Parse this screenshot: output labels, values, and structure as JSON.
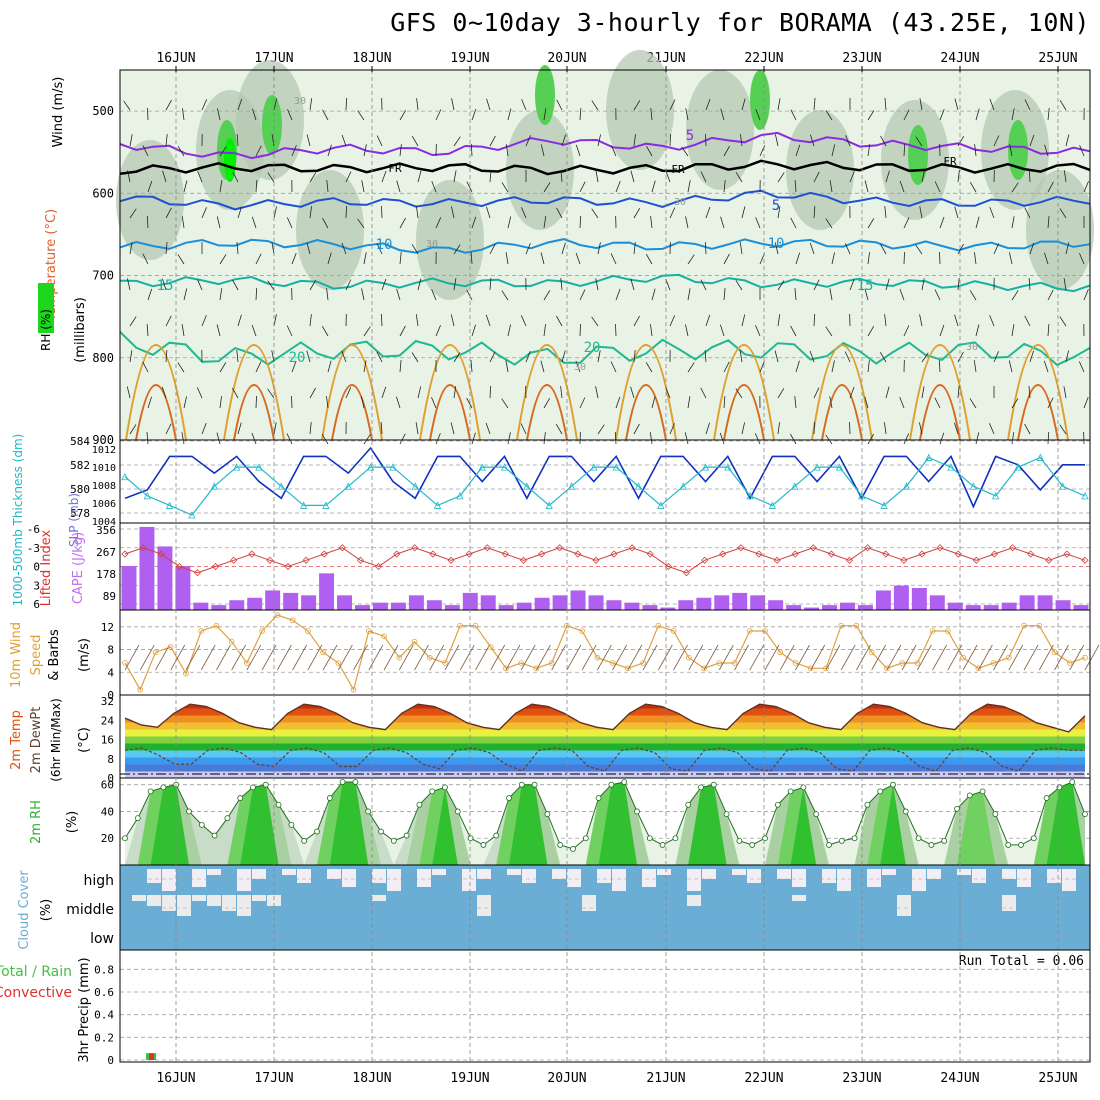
{
  "title": "GFS 0~10day 3-hourly for BORAMA (43.25E, 10N)",
  "date_labels": [
    "16JUN",
    "17JUN",
    "18JUN",
    "19JUN",
    "20JUN",
    "21JUN",
    "22JUN",
    "23JUN",
    "24JUN",
    "25JUN"
  ],
  "colors": {
    "frame": "#000000",
    "grid": "#a0a0a0",
    "rh_fill": "#c8d8c8",
    "temp_5": "#8a2be2",
    "temp_10": "#1a8fd8",
    "temp_15": "#17b0a0",
    "temp_20": "#20b890",
    "fr": "#000000",
    "slp": "#1030c0",
    "thk": "#20b8c8",
    "li": "#d04040",
    "cape": "#b060f0",
    "wind": "#e0a040",
    "temp2m": "#e05020",
    "rh2m": "#30b030",
    "cloud": "#6aaed6",
    "precip_total": "#40c040",
    "precip_conv": "#e03030"
  },
  "chart_data": [
    {
      "type": "heatmap",
      "ylabel_wind": "Wind (m/s)",
      "ylabel_temp": "Temperature (°C)",
      "ylabel_rh": "RH (%)",
      "ylabel_p": "(millibars)",
      "yticks": [
        "500",
        "600",
        "700",
        "800",
        "900"
      ],
      "ylim": [
        900,
        450
      ],
      "contours": [
        {
          "level": "5",
          "pressure": [
            540,
            555,
            545,
            550,
            535,
            545,
            530,
            540,
            545,
            550
          ]
        },
        {
          "level": "FR",
          "pressure": [
            572,
            568,
            570,
            568,
            572,
            570,
            565,
            568,
            570,
            568
          ]
        },
        {
          "level": "5",
          "pressure": [
            605,
            615,
            610,
            612,
            608,
            612,
            600,
            610,
            612,
            608
          ]
        },
        {
          "level": "10",
          "pressure": [
            665,
            660,
            662,
            670,
            660,
            665,
            660,
            662,
            665,
            660
          ]
        },
        {
          "level": "15",
          "pressure": [
            710,
            705,
            712,
            708,
            710,
            702,
            710,
            708,
            712,
            715
          ]
        },
        {
          "level": "20",
          "pressure": [
            780,
            800,
            790,
            790,
            800,
            790,
            790,
            795,
            790,
            800
          ]
        }
      ],
      "inline_labels": [
        "5",
        "FR",
        "FR",
        "FR",
        "5",
        "10",
        "10",
        "15",
        "15",
        "20",
        "20",
        "30",
        "30",
        "30",
        "30",
        "30"
      ]
    },
    {
      "type": "line",
      "ylabel_left": "1000-500mb Thickness (dm)",
      "ylabel_right": "SLP (mb)",
      "yticks_left": [
        "578",
        "580",
        "582",
        "584"
      ],
      "yticks_right": [
        "1004",
        "1006",
        "1008",
        "1010",
        "1012"
      ],
      "series": [
        {
          "name": "SLP (mb)",
          "values": [
            1006,
            1007,
            1011,
            1011,
            1009,
            1011,
            1008,
            1006,
            1011,
            1011,
            1009,
            1012,
            1008,
            1006,
            1011,
            1011,
            1008,
            1011,
            1006,
            1011,
            1011,
            1008,
            1011,
            1006,
            1011,
            1011,
            1008,
            1011,
            1006,
            1011,
            1011,
            1008,
            1011,
            1006,
            1011,
            1011,
            1008,
            1011,
            1005,
            1011,
            1010,
            1007,
            1010,
            1010
          ]
        },
        {
          "name": "Thickness (dm)",
          "values": [
            581,
            579,
            578,
            577,
            580,
            582,
            582,
            580,
            578,
            578,
            580,
            582,
            582,
            580,
            578,
            579,
            582,
            582,
            580,
            578,
            580,
            582,
            582,
            580,
            578,
            580,
            582,
            582,
            579,
            578,
            580,
            582,
            582,
            579,
            578,
            580,
            583,
            582,
            580,
            579,
            582,
            583,
            580,
            579
          ]
        }
      ]
    },
    {
      "type": "bar",
      "ylabel_left": "Lifted Index",
      "ylabel_right": "CAPE (J/kg)",
      "yticks_left": [
        "-6",
        "-3",
        "0",
        "3",
        "6"
      ],
      "yticks_right": [
        "89",
        "178",
        "267",
        "356"
      ],
      "cape": [
        180,
        340,
        260,
        180,
        30,
        20,
        40,
        50,
        80,
        70,
        60,
        150,
        60,
        20,
        30,
        30,
        60,
        40,
        20,
        70,
        60,
        20,
        30,
        50,
        60,
        80,
        60,
        40,
        30,
        20,
        10,
        40,
        50,
        60,
        70,
        60,
        40,
        20,
        10,
        20,
        30,
        20,
        80,
        100,
        90,
        60,
        30,
        20,
        20,
        30,
        60,
        60,
        40,
        20
      ],
      "lifted_index": [
        -2,
        -3,
        -2,
        0,
        1,
        0,
        -1,
        -2,
        -1,
        0,
        -1,
        -2,
        -3,
        -1,
        0,
        -2,
        -3,
        -2,
        -1,
        -2,
        -3,
        -2,
        -1,
        -2,
        -3,
        -2,
        -1,
        -2,
        -3,
        -2,
        0,
        1,
        -1,
        -2,
        -3,
        -2,
        -1,
        -2,
        -3,
        -2,
        -1,
        -3,
        -2,
        -1,
        -2,
        -3,
        -2,
        -1,
        -2,
        -3,
        -2,
        -1,
        -2,
        -1
      ]
    },
    {
      "type": "line",
      "ylabel": "10m Wind Speed & Barbs (m/s)",
      "yticks": [
        "0",
        "4",
        "8",
        "12"
      ],
      "series": [
        {
          "name": "10m Wind Speed",
          "values": [
            6,
            1,
            8,
            9,
            4,
            12,
            13,
            10,
            6,
            12,
            15,
            14,
            12,
            8,
            6,
            1,
            12,
            11,
            7,
            10,
            7,
            6,
            13,
            13,
            9,
            5,
            6,
            5,
            6,
            13,
            12,
            7,
            6,
            5,
            6,
            13,
            12,
            7,
            5,
            6,
            6,
            12,
            12,
            8,
            6,
            5,
            5,
            13,
            13,
            8,
            5,
            6,
            6,
            12,
            12,
            7,
            5,
            6,
            7,
            13,
            13,
            8,
            6,
            7
          ]
        }
      ]
    },
    {
      "type": "area",
      "ylabel": "2m Temp 2m DewPt (6hr Min/Max) (°C)",
      "yticks": [
        "0",
        "8",
        "16",
        "24",
        "32"
      ],
      "series": [
        {
          "name": "2m Temp",
          "values": [
            26,
            23,
            22,
            28,
            32,
            31,
            28,
            24,
            22,
            21,
            28,
            32,
            31,
            28,
            24,
            22,
            21,
            28,
            32,
            31,
            28,
            24,
            22,
            21,
            28,
            32,
            31,
            28,
            24,
            22,
            21,
            28,
            32,
            31,
            28,
            24,
            22,
            21,
            28,
            32,
            31,
            28,
            24,
            22,
            21,
            28,
            32,
            31,
            28,
            24,
            22,
            21,
            28,
            32,
            31,
            28,
            24,
            22,
            20,
            27
          ]
        },
        {
          "name": "2m DewPt",
          "values": [
            12,
            13,
            10,
            6,
            6,
            12,
            13,
            11,
            6,
            5,
            12,
            13,
            11,
            5,
            5,
            12,
            13,
            11,
            6,
            4,
            12,
            13,
            11,
            6,
            3,
            12,
            13,
            12,
            5,
            3,
            12,
            13,
            11,
            4,
            3,
            12,
            13,
            11,
            4,
            3,
            12,
            13,
            11,
            4,
            3,
            12,
            13,
            11,
            5,
            3,
            12,
            13,
            11,
            5,
            3,
            12,
            13,
            12,
            12
          ]
        }
      ]
    },
    {
      "type": "area",
      "ylabel": "2m RH (%)",
      "yticks": [
        "20",
        "40",
        "60"
      ],
      "series": [
        {
          "name": "2m RH",
          "values": [
            20,
            35,
            55,
            58,
            60,
            40,
            30,
            22,
            35,
            50,
            58,
            60,
            45,
            30,
            18,
            25,
            50,
            62,
            62,
            40,
            25,
            18,
            22,
            45,
            55,
            58,
            40,
            20,
            15,
            22,
            50,
            60,
            60,
            38,
            15,
            12,
            20,
            50,
            60,
            62,
            40,
            20,
            15,
            20,
            45,
            58,
            60,
            38,
            18,
            15,
            20,
            45,
            55,
            58,
            38,
            15,
            18,
            20,
            45,
            55,
            60,
            40,
            20,
            15,
            18,
            42,
            52,
            55,
            38,
            15,
            15,
            20,
            50,
            58,
            62,
            38
          ]
        }
      ]
    },
    {
      "type": "heatmap",
      "ylabel": "Cloud Cover (%)",
      "rows": [
        "high",
        "middle",
        "low"
      ]
    },
    {
      "type": "bar",
      "ylabel": "3hr Precip (mm)",
      "legend": [
        "Total / Rain",
        "Convective"
      ],
      "yticks": [
        "0",
        "0.2",
        "0.4",
        "0.6",
        "0.8"
      ],
      "annotation": "Run Total = 0.06",
      "values": [
        0,
        0,
        0.06,
        0,
        0,
        0,
        0,
        0,
        0,
        0
      ]
    }
  ]
}
